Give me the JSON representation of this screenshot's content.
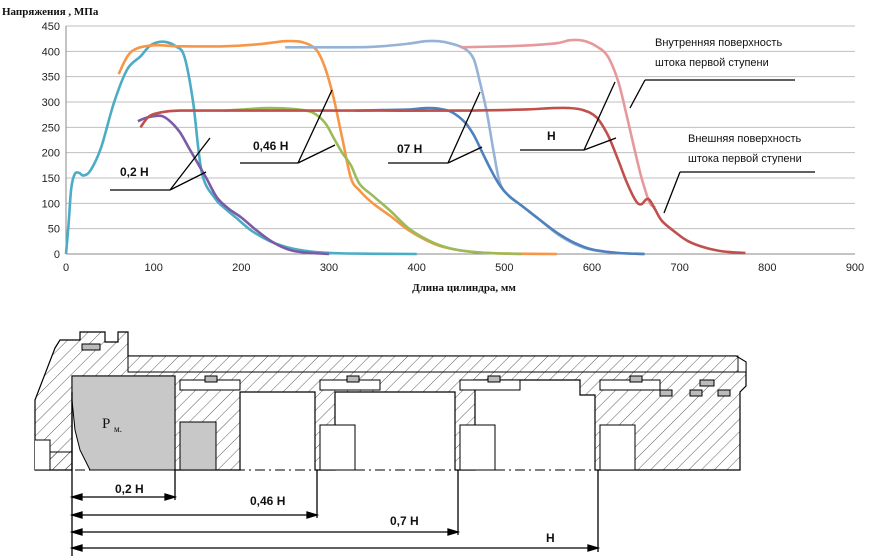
{
  "chart_data": {
    "type": "line",
    "ylabel": "Напряжения , МПа",
    "xlabel": "Длина цилиндра, мм",
    "xlim": [
      0,
      900
    ],
    "ylim": [
      0,
      450
    ],
    "xticks": [
      0,
      100,
      200,
      300,
      400,
      500,
      600,
      700,
      800,
      900
    ],
    "yticks": [
      0,
      50,
      100,
      150,
      200,
      250,
      300,
      350,
      400,
      450
    ],
    "grid": "horizontal",
    "series": [
      {
        "id": "inner-0.2",
        "color": "#4bacc6",
        "points": [
          [
            0,
            0
          ],
          [
            3,
            60
          ],
          [
            6,
            130
          ],
          [
            10,
            158
          ],
          [
            15,
            160
          ],
          [
            20,
            155
          ],
          [
            28,
            165
          ],
          [
            40,
            210
          ],
          [
            55,
            300
          ],
          [
            70,
            365
          ],
          [
            85,
            390
          ],
          [
            95,
            410
          ],
          [
            105,
            418
          ],
          [
            115,
            418
          ],
          [
            125,
            410
          ],
          [
            135,
            390
          ],
          [
            145,
            300
          ],
          [
            155,
            160
          ],
          [
            170,
            110
          ],
          [
            180,
            92
          ],
          [
            195,
            70
          ],
          [
            210,
            48
          ],
          [
            225,
            32
          ],
          [
            240,
            20
          ],
          [
            260,
            10
          ],
          [
            285,
            4
          ],
          [
            320,
            1
          ],
          [
            400,
            0
          ]
        ]
      },
      {
        "id": "outer-0.2",
        "color": "#7b5aa6",
        "points": [
          [
            82,
            262
          ],
          [
            90,
            268
          ],
          [
            100,
            272
          ],
          [
            110,
            272
          ],
          [
            120,
            260
          ],
          [
            130,
            240
          ],
          [
            140,
            210
          ],
          [
            150,
            180
          ],
          [
            160,
            150
          ],
          [
            172,
            112
          ],
          [
            185,
            90
          ],
          [
            200,
            72
          ],
          [
            215,
            50
          ],
          [
            230,
            30
          ],
          [
            245,
            15
          ],
          [
            260,
            6
          ],
          [
            280,
            2
          ],
          [
            300,
            0
          ]
        ]
      },
      {
        "id": "inner-0.46",
        "color": "#f79646",
        "points": [
          [
            60,
            355
          ],
          [
            70,
            390
          ],
          [
            80,
            405
          ],
          [
            100,
            412
          ],
          [
            130,
            410
          ],
          [
            180,
            410
          ],
          [
            220,
            414
          ],
          [
            250,
            420
          ],
          [
            270,
            418
          ],
          [
            285,
            404
          ],
          [
            295,
            370
          ],
          [
            305,
            310
          ],
          [
            315,
            230
          ],
          [
            325,
            150
          ],
          [
            335,
            125
          ],
          [
            350,
            100
          ],
          [
            370,
            75
          ],
          [
            390,
            48
          ],
          [
            410,
            28
          ],
          [
            430,
            14
          ],
          [
            460,
            5
          ],
          [
            500,
            1
          ],
          [
            560,
            0
          ]
        ]
      },
      {
        "id": "outer-0.46",
        "color": "#9bbb59",
        "points": [
          [
            180,
            283
          ],
          [
            200,
            285
          ],
          [
            230,
            288
          ],
          [
            260,
            286
          ],
          [
            280,
            280
          ],
          [
            295,
            260
          ],
          [
            305,
            230
          ],
          [
            315,
            200
          ],
          [
            325,
            175
          ],
          [
            335,
            138
          ],
          [
            350,
            115
          ],
          [
            370,
            85
          ],
          [
            390,
            52
          ],
          [
            410,
            30
          ],
          [
            430,
            15
          ],
          [
            450,
            7
          ],
          [
            480,
            2
          ],
          [
            520,
            0
          ]
        ]
      },
      {
        "id": "inner-0.7",
        "color": "#95b3d7",
        "points": [
          [
            250,
            408
          ],
          [
            300,
            408
          ],
          [
            350,
            409
          ],
          [
            390,
            415
          ],
          [
            410,
            420
          ],
          [
            425,
            420
          ],
          [
            440,
            415
          ],
          [
            455,
            405
          ],
          [
            465,
            385
          ],
          [
            472,
            340
          ],
          [
            480,
            280
          ],
          [
            488,
            200
          ],
          [
            495,
            140
          ],
          [
            505,
            115
          ],
          [
            520,
            95
          ],
          [
            540,
            68
          ],
          [
            560,
            40
          ],
          [
            580,
            20
          ],
          [
            600,
            8
          ],
          [
            630,
            2
          ],
          [
            660,
            0
          ]
        ]
      },
      {
        "id": "outer-0.7",
        "color": "#4f81bd",
        "points": [
          [
            330,
            283
          ],
          [
            360,
            284
          ],
          [
            390,
            285
          ],
          [
            410,
            288
          ],
          [
            425,
            287
          ],
          [
            440,
            280
          ],
          [
            455,
            260
          ],
          [
            465,
            235
          ],
          [
            475,
            200
          ],
          [
            485,
            165
          ],
          [
            495,
            135
          ],
          [
            505,
            115
          ],
          [
            520,
            95
          ],
          [
            540,
            68
          ],
          [
            560,
            42
          ],
          [
            580,
            22
          ],
          [
            600,
            9
          ],
          [
            630,
            2
          ],
          [
            660,
            0
          ]
        ]
      },
      {
        "id": "inner-H",
        "color": "#e6999b",
        "points": [
          [
            450,
            408
          ],
          [
            500,
            410
          ],
          [
            530,
            412
          ],
          [
            560,
            416
          ],
          [
            575,
            422
          ],
          [
            590,
            421
          ],
          [
            605,
            410
          ],
          [
            618,
            390
          ],
          [
            630,
            340
          ],
          [
            640,
            270
          ],
          [
            648,
            210
          ],
          [
            655,
            160
          ],
          [
            660,
            130
          ],
          [
            666,
            100
          ],
          [
            672,
            92
          ]
        ]
      },
      {
        "id": "outer-H",
        "color": "#c0504d",
        "points": [
          [
            85,
            250
          ],
          [
            95,
            272
          ],
          [
            110,
            280
          ],
          [
            130,
            283
          ],
          [
            180,
            283
          ],
          [
            250,
            283
          ],
          [
            350,
            283
          ],
          [
            450,
            283
          ],
          [
            520,
            285
          ],
          [
            555,
            288
          ],
          [
            575,
            288
          ],
          [
            590,
            284
          ],
          [
            605,
            270
          ],
          [
            618,
            235
          ],
          [
            630,
            185
          ],
          [
            640,
            140
          ],
          [
            650,
            105
          ],
          [
            656,
            98
          ],
          [
            662,
            108
          ],
          [
            666,
            106
          ],
          [
            672,
            88
          ],
          [
            680,
            65
          ],
          [
            695,
            43
          ],
          [
            710,
            25
          ],
          [
            730,
            12
          ],
          [
            750,
            5
          ],
          [
            775,
            2
          ]
        ]
      }
    ]
  },
  "callouts": {
    "c02": "0,2 Н",
    "c046": "0,46 Н",
    "c07": "07 Н",
    "cH": "Н",
    "inner_line1": "Внутренняя поверхность",
    "inner_line2": "штока первой ступени",
    "outer_line1": "Внешняя поверхность",
    "outer_line2": "штока первой ступени"
  },
  "drawing": {
    "pressure_label": "Р",
    "pressure_sub": "м.",
    "dims": [
      "0,2 Н",
      "0,46 Н",
      "0,7 Н",
      "Н"
    ]
  },
  "colors": {
    "grid": "#bfbfbf",
    "hatch": "#333333",
    "pressure_fill": "#c8c8c8"
  }
}
